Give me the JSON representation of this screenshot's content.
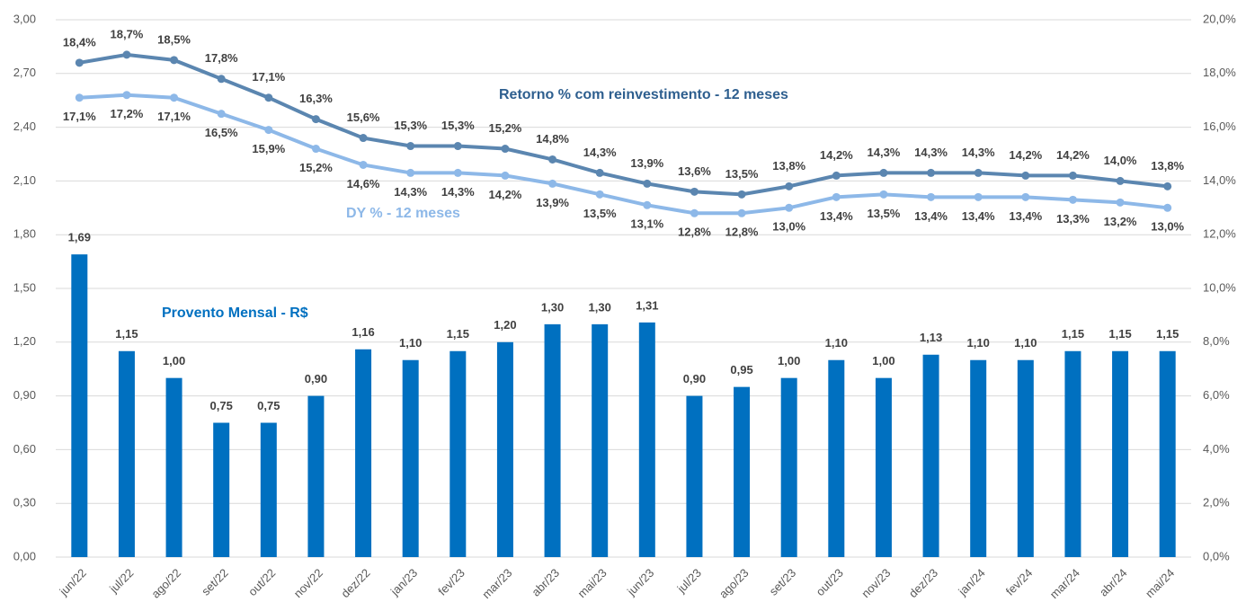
{
  "chart_data": {
    "type": "bar-line",
    "categories": [
      "jun/22",
      "jul/22",
      "ago/22",
      "set/22",
      "out/22",
      "nov/22",
      "dez/22",
      "jan/23",
      "fev/23",
      "mar/23",
      "abr/23",
      "mai/23",
      "jun/23",
      "jul/23",
      "ago/23",
      "set/23",
      "out/23",
      "nov/23",
      "dez/23",
      "jan/24",
      "fev/24",
      "mar/24",
      "abr/24",
      "mai/24"
    ],
    "series": [
      {
        "name": "Provento Mensal - R$",
        "type": "bar",
        "color": "#0070c0",
        "values": [
          1.69,
          1.15,
          1.0,
          0.75,
          0.75,
          0.9,
          1.16,
          1.1,
          1.15,
          1.2,
          1.3,
          1.3,
          1.31,
          0.9,
          0.95,
          1.0,
          1.1,
          1.0,
          1.13,
          1.1,
          1.1,
          1.15,
          1.15,
          1.15
        ],
        "value_labels": [
          "1,69",
          "1,15",
          "1,00",
          "0,75",
          "0,75",
          "0,90",
          "1,16",
          "1,10",
          "1,15",
          "1,20",
          "1,30",
          "1,30",
          "1,31",
          "0,90",
          "0,95",
          "1,00",
          "1,10",
          "1,00",
          "1,13",
          "1,10",
          "1,10",
          "1,15",
          "1,15",
          "1,15"
        ]
      },
      {
        "name": "Retorno % com reinvestimento - 12 meses",
        "type": "line",
        "axis": "y2",
        "color": "#5b86b0",
        "values": [
          18.4,
          18.7,
          18.5,
          17.8,
          17.1,
          16.3,
          15.6,
          15.3,
          15.3,
          15.2,
          14.8,
          14.3,
          13.9,
          13.6,
          13.5,
          13.8,
          14.2,
          14.3,
          14.3,
          14.3,
          14.2,
          14.2,
          14.0,
          13.8
        ],
        "value_labels": [
          "18,4%",
          "18,7%",
          "18,5%",
          "17,8%",
          "17,1%",
          "16,3%",
          "15,6%",
          "15,3%",
          "15,3%",
          "15,2%",
          "14,8%",
          "14,3%",
          "13,9%",
          "13,6%",
          "13,5%",
          "13,8%",
          "14,2%",
          "14,3%",
          "14,3%",
          "14,3%",
          "14,2%",
          "14,2%",
          "14,0%",
          "13,8%"
        ]
      },
      {
        "name": "DY % - 12 meses",
        "type": "line",
        "axis": "y2",
        "color": "#8db8e8",
        "values": [
          17.1,
          17.2,
          17.1,
          16.5,
          15.9,
          15.2,
          14.6,
          14.3,
          14.3,
          14.2,
          13.9,
          13.5,
          13.1,
          12.8,
          12.8,
          13.0,
          13.4,
          13.5,
          13.4,
          13.4,
          13.4,
          13.3,
          13.2,
          13.0
        ],
        "value_labels": [
          "17,1%",
          "17,2%",
          "17,1%",
          "16,5%",
          "15,9%",
          "15,2%",
          "14,6%",
          "14,3%",
          "14,3%",
          "14,2%",
          "13,9%",
          "13,5%",
          "13,1%",
          "12,8%",
          "12,8%",
          "13,0%",
          "13,4%",
          "13,5%",
          "13,4%",
          "13,4%",
          "13,4%",
          "13,3%",
          "13,2%",
          "13,0%"
        ]
      }
    ],
    "ylim": [
      0,
      3
    ],
    "yticks": [
      {
        "value": 0,
        "label": "0,00"
      },
      {
        "value": 0.3,
        "label": "0,30"
      },
      {
        "value": 0.6,
        "label": "0,60"
      },
      {
        "value": 0.9,
        "label": "0,90"
      },
      {
        "value": 1.2,
        "label": "1,20"
      },
      {
        "value": 1.5,
        "label": "1,50"
      },
      {
        "value": 1.8,
        "label": "1,80"
      },
      {
        "value": 2.1,
        "label": "2,10"
      },
      {
        "value": 2.4,
        "label": "2,40"
      },
      {
        "value": 2.7,
        "label": "2,70"
      },
      {
        "value": 3,
        "label": "3,00"
      }
    ],
    "y2lim": [
      0,
      20
    ],
    "y2ticks": [
      {
        "value": 0,
        "label": "0,0%"
      },
      {
        "value": 2,
        "label": "2,0%"
      },
      {
        "value": 4,
        "label": "4,0%"
      },
      {
        "value": 6,
        "label": "6,0%"
      },
      {
        "value": 8,
        "label": "8,0%"
      },
      {
        "value": 10,
        "label": "10,0%"
      },
      {
        "value": 12,
        "label": "12,0%"
      },
      {
        "value": 14,
        "label": "14,0%"
      },
      {
        "value": 16,
        "label": "16,0%"
      },
      {
        "value": 18,
        "label": "18,0%"
      },
      {
        "value": 20,
        "label": "20,0%"
      }
    ],
    "grid": true
  }
}
